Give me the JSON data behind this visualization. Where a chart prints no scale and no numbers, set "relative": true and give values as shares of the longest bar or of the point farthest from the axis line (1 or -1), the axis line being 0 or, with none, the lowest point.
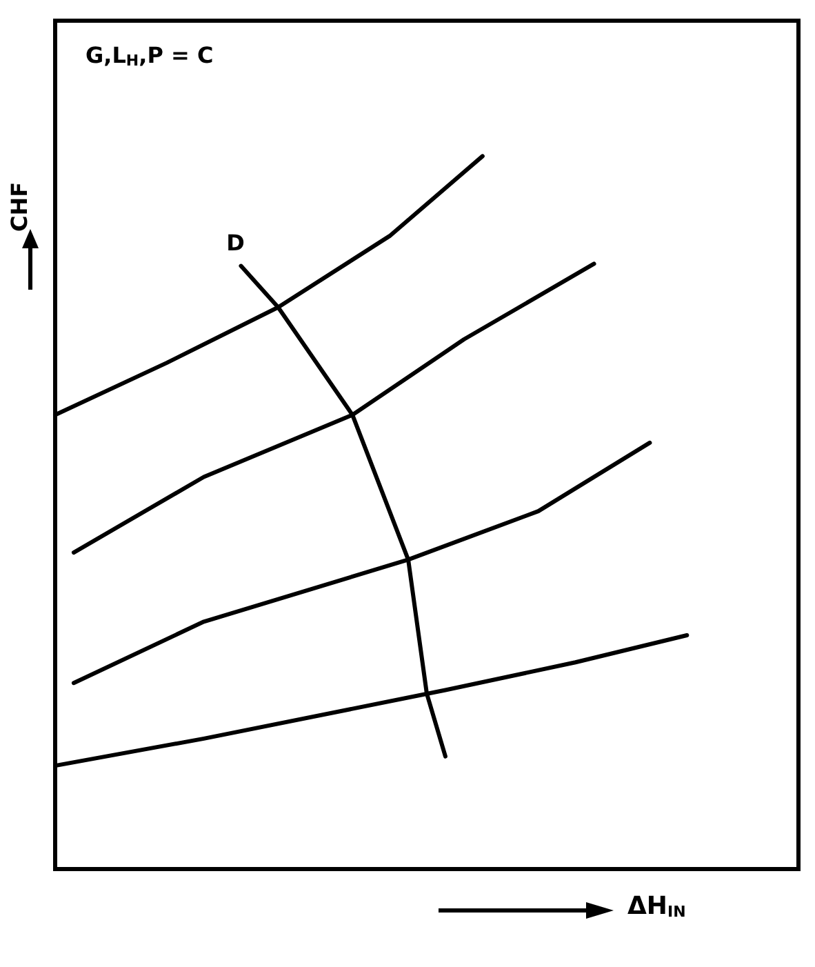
{
  "chart_data": {
    "type": "line",
    "relative": true,
    "xlabel": "ΔH$_{IN}$",
    "ylabel": "CHF",
    "grid": false,
    "legend": false,
    "marker": "none",
    "line_style": "solid",
    "annotations": [
      "G,L$_{H}$,P = C"
    ],
    "categories": [
      null,
      null,
      null,
      null,
      null,
      null,
      null,
      null,
      null,
      null,
      null,
      null,
      null,
      null,
      null,
      null,
      null,
      null,
      null,
      null,
      null,
      null,
      null,
      null,
      null,
      null,
      null,
      null,
      null,
      null,
      null,
      null,
      null,
      null,
      null,
      null,
      null,
      null,
      null,
      null,
      null
    ],
    "series": [
      {
        "color": "#000000",
        "values": [
          0.637,
          null,
          null,
          null,
          null,
          null,
          0.71,
          null,
          null,
          null,
          null,
          null,
          0.788,
          null,
          null,
          null,
          null,
          null,
          0.888,
          null,
          null,
          null,
          null,
          1,
          null,
          null,
          null,
          null,
          null,
          null,
          null,
          null,
          null,
          null,
          null,
          null,
          null,
          null,
          null,
          null,
          null
        ]
      },
      {
        "color": "#000000",
        "values": [
          null,
          0.444,
          null,
          null,
          null,
          null,
          null,
          null,
          0.55,
          null,
          null,
          null,
          null,
          null,
          null,
          null,
          0.637,
          null,
          null,
          null,
          null,
          null,
          0.743,
          null,
          null,
          null,
          null,
          null,
          null,
          0.849,
          null,
          null,
          null,
          null,
          null,
          null,
          null,
          null,
          null,
          null,
          null
        ]
      },
      {
        "color": "#000000",
        "values": [
          null,
          0.261,
          null,
          null,
          null,
          null,
          null,
          null,
          0.347,
          null,
          null,
          null,
          null,
          null,
          null,
          null,
          null,
          null,
          null,
          0.434,
          null,
          null,
          null,
          null,
          null,
          null,
          0.502,
          null,
          null,
          null,
          null,
          null,
          0.598,
          null,
          null,
          null,
          null,
          null,
          null,
          null,
          null
        ]
      },
      {
        "color": "#000000",
        "values": [
          0.145,
          null,
          null,
          null,
          null,
          null,
          null,
          null,
          0.183,
          null,
          null,
          null,
          null,
          null,
          null,
          null,
          null,
          null,
          null,
          null,
          null,
          0.251,
          null,
          null,
          null,
          null,
          null,
          null,
          0.29,
          null,
          null,
          null,
          null,
          null,
          0.328,
          null,
          null,
          null,
          null,
          null,
          null
        ]
      },
      {
        "name": "D",
        "color": "#000000",
        "values": [
          null,
          null,
          null,
          null,
          null,
          null,
          null,
          null,
          null,
          null,
          0.846,
          null,
          0.788,
          null,
          null,
          null,
          0.637,
          null,
          null,
          0.434,
          0.246,
          0.158,
          null,
          null,
          null,
          null,
          null,
          null,
          null,
          null,
          null,
          null,
          null,
          null,
          null,
          null,
          null,
          null,
          null,
          null,
          null
        ]
      }
    ]
  }
}
